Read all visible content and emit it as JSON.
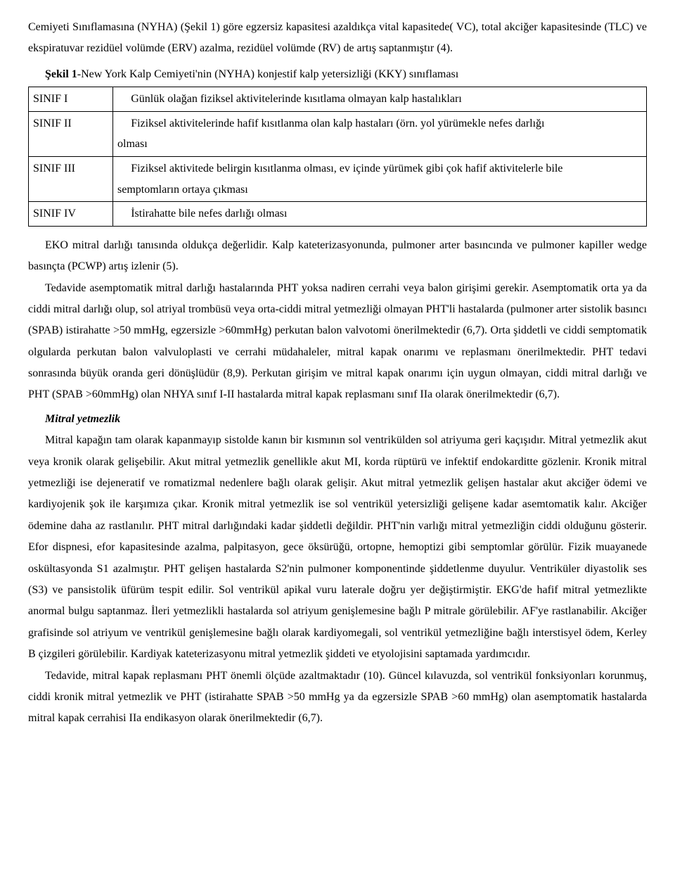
{
  "intro": {
    "p1": "Cemiyeti Sınıflamasına (NYHA) (Şekil 1) göre egzersiz kapasitesi azaldıkça vital kapasitede( VC), total akciğer kapasitesinde (TLC) ve ekspiratuvar rezidüel volümde (ERV) azalma, rezidüel volümde (RV) de artış saptanmıştır (4)."
  },
  "table": {
    "caption_bold": "Şekil 1",
    "caption_rest": "-New York Kalp Cemiyeti'nin (NYHA) konjestif kalp yetersizliği (KKY) sınıflaması",
    "rows": [
      {
        "c1": "SINIF I",
        "c2_line1": "Günlük olağan fiziksel aktivitelerinde kısıtlama olmayan kalp hastalıkları",
        "c2_line2": ""
      },
      {
        "c1": "SINIF II",
        "c2_line1": "Fiziksel aktivitelerinde hafif kısıtlanma olan kalp hastaları (örn. yol yürümekle nefes darlığı",
        "c2_line2": "olması"
      },
      {
        "c1": "SINIF III",
        "c2_line1": "Fiziksel aktivitede belirgin kısıtlanma olması, ev içinde yürümek gibi çok hafif aktivitelerle bile",
        "c2_line2": "semptomların ortaya çıkması"
      },
      {
        "c1": "SINIF IV",
        "c2_line1": "İstirahatte bile nefes darlığı olması",
        "c2_line2": ""
      }
    ]
  },
  "body": {
    "p2": "EKO mitral darlığı tanısında oldukça değerlidir. Kalp kateterizasyonunda, pulmoner arter basıncında ve pulmoner kapiller wedge basınçta (PCWP) artış izlenir (5).",
    "p3": "Tedavide asemptomatik mitral darlığı hastalarında PHT yoksa nadiren cerrahi veya balon girişimi gerekir. Asemptomatik orta ya da ciddi mitral darlığı olup, sol atriyal trombüsü veya orta-ciddi mitral yetmezliği olmayan PHT'li hastalarda (pulmoner arter sistolik basıncı (SPAB) istirahatte >50 mmHg, egzersizle >60mmHg) perkutan balon valvotomi önerilmektedir (6,7). Orta şiddetli ve ciddi semptomatik olgularda perkutan balon valvuloplasti ve cerrahi müdahaleler, mitral kapak onarımı ve replasmanı önerilmektedir. PHT tedavi sonrasında büyük oranda geri dönüşlüdür (8,9). Perkutan girişim ve mitral kapak onarımı için uygun olmayan, ciddi mitral darlığı ve PHT (SPAB >60mmHg) olan NHYA sınıf I-II hastalarda mitral kapak replasmanı sınıf IIa olarak önerilmektedir (6,7).",
    "section_title": "Mitral yetmezlik",
    "p4": "Mitral kapağın tam olarak kapanmayıp sistolde kanın bir kısmının sol ventrikülden sol atriyuma geri kaçışıdır. Mitral yetmezlik akut veya kronik olarak gelişebilir. Akut mitral yetmezlik genellikle akut MI, korda rüptürü ve infektif endokarditte gözlenir. Kronik mitral yetmezliği ise dejeneratif ve romatizmal nedenlere bağlı olarak gelişir. Akut mitral yetmezlik gelişen hastalar akut akciğer ödemi ve kardiyojenik şok ile karşımıza çıkar. Kronik mitral yetmezlik ise sol ventrikül yetersizliği gelişene kadar asemtomatik kalır. Akciğer ödemine daha az rastlanılır. PHT mitral darlığındaki kadar şiddetli değildir. PHT'nin varlığı mitral yetmezliğin ciddi olduğunu gösterir. Efor dispnesi, efor kapasitesinde azalma, palpitasyon, gece öksürüğü, ortopne, hemoptizi gibi semptomlar görülür. Fizik muayanede oskültasyonda S1 azalmıştır. PHT gelişen hastalarda S2'nin pulmoner komponentinde şiddetlenme duyulur. Ventriküler diyastolik ses (S3) ve pansistolik üfürüm tespit edilir. Sol ventrikül apikal vuru laterale doğru yer değiştirmiştir. EKG'de hafif mitral yetmezlikte anormal bulgu saptanmaz. İleri yetmezlikli hastalarda sol atriyum genişlemesine bağlı P mitrale görülebilir. AF'ye rastlanabilir. Akciğer grafisinde sol atriyum ve ventrikül genişlemesine bağlı olarak kardiyomegali, sol ventrikül yetmezliğine bağlı interstisyel ödem, Kerley B çizgileri görülebilir. Kardiyak kateterizasyonu mitral yetmezlik şiddeti ve etyolojisini saptamada yardımcıdır.",
    "p5": "Tedavide, mitral kapak replasmanı PHT önemli ölçüde azaltmaktadır (10). Güncel kılavuzda, sol ventrikül fonksiyonları korunmuş, ciddi kronik mitral yetmezlik ve PHT (istirahatte SPAB >50 mmHg ya da egzersizle SPAB >60 mmHg) olan asemptomatik hastalarda mitral kapak cerrahisi IIa endikasyon olarak önerilmektedir (6,7)."
  }
}
